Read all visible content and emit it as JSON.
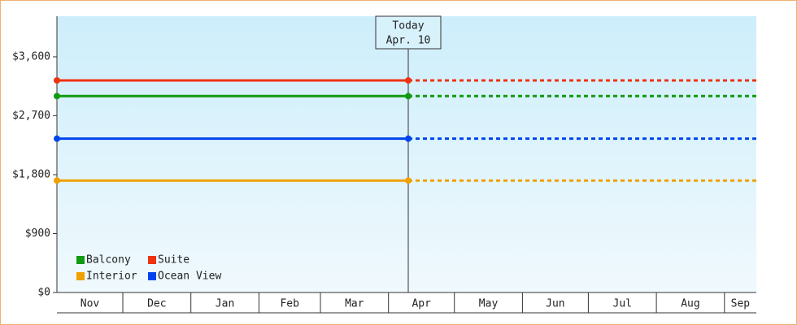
{
  "chart_data": {
    "type": "line",
    "categories": [
      "Nov",
      "Dec",
      "Jan",
      "Feb",
      "Mar",
      "Apr",
      "May",
      "Jun",
      "Jul",
      "Aug",
      "Sep"
    ],
    "ylim": [
      0,
      4220
    ],
    "yticks": [
      {
        "value": 0,
        "label": "$0"
      },
      {
        "value": 900,
        "label": "$900"
      },
      {
        "value": 1800,
        "label": "$1,800"
      },
      {
        "value": 2700,
        "label": "$2,700"
      },
      {
        "value": 3600,
        "label": "$3,600"
      }
    ],
    "today": {
      "title": "Today",
      "label": "Apr. 10",
      "category": 5,
      "day": 10
    },
    "series": [
      {
        "name": "Balcony",
        "color": "#119911",
        "value": 3000
      },
      {
        "name": "Suite",
        "color": "#ee3311",
        "value": 3240
      },
      {
        "name": "Interior",
        "color": "#f0a000",
        "value": 1710
      },
      {
        "name": "Ocean View",
        "color": "#0044ee",
        "value": 2350
      }
    ],
    "legend": "lower left"
  }
}
